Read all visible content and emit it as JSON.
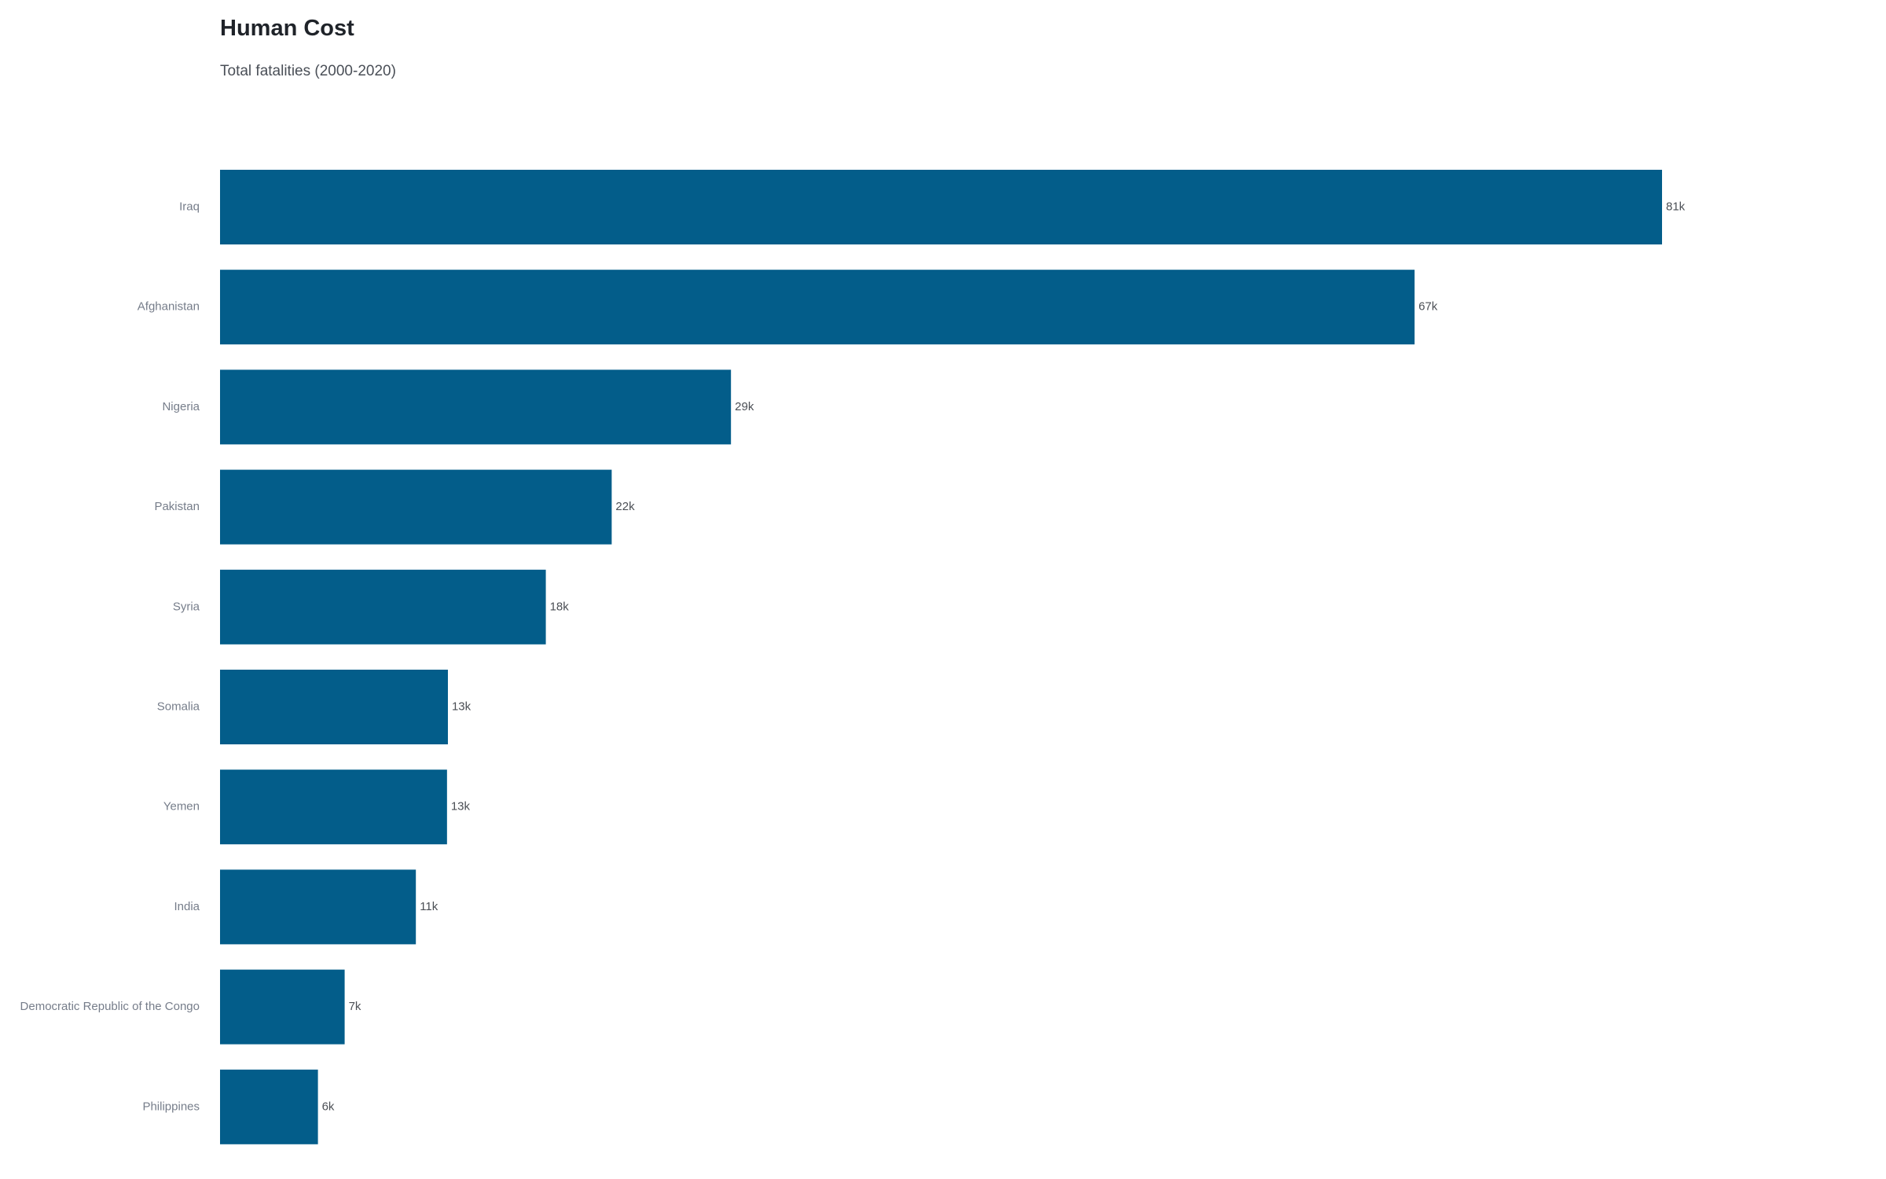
{
  "chart_data": {
    "type": "bar",
    "orientation": "horizontal",
    "title": "Human Cost",
    "subtitle": "Total fatalities (2000-2020)",
    "categories": [
      "Iraq",
      "Afghanistan",
      "Nigeria",
      "Pakistan",
      "Syria",
      "Somalia",
      "Yemen",
      "India",
      "Democratic Republic of the Congo",
      "Philippines"
    ],
    "values": [
      81000,
      67100,
      28700,
      22000,
      18300,
      12800,
      12750,
      11000,
      7000,
      5500
    ],
    "value_labels": [
      "81k",
      "67k",
      "29k",
      "22k",
      "18k",
      "13k",
      "13k",
      "11k",
      "7k",
      "6k"
    ],
    "xlim": [
      0,
      81000
    ],
    "grid": false,
    "legend": "none",
    "bar_color": "#035d8a"
  }
}
